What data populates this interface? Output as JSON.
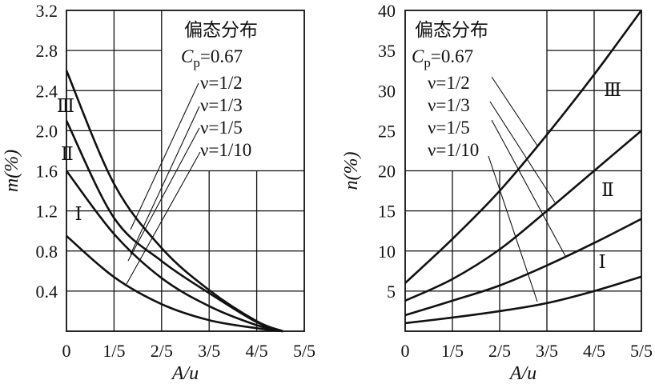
{
  "chart_data": [
    {
      "type": "line",
      "xlabel": "A/u",
      "ylabel": "m(%)",
      "ylim": [
        0,
        3.2
      ],
      "xlim": [
        0,
        1
      ],
      "x_tick_labels": [
        "0",
        "1/5",
        "2/5",
        "3/5",
        "4/5",
        "5/5"
      ],
      "y_ticks": [
        0.4,
        0.8,
        1.2,
        1.6,
        2.0,
        2.4,
        2.8,
        3.2
      ],
      "y_tick_labels": [
        "0.4",
        "0.8",
        "1.2",
        "1.6",
        "2.0",
        "2.4",
        "2.8",
        "3.2"
      ],
      "grid": true,
      "legend_title": "偏态分布",
      "legend_cp": "C",
      "legend_cp_sub": "p",
      "legend_cp_value": "=0.67",
      "legend_placement": "top-right",
      "curve_labels": [
        "Ⅲ",
        "Ⅱ",
        "Ⅰ"
      ],
      "x": [
        0,
        0.2,
        0.4,
        0.6,
        0.8,
        0.91
      ],
      "series": [
        {
          "name": "ν=1/2",
          "values": [
            2.6,
            1.47,
            0.83,
            0.41,
            0.1,
            0
          ]
        },
        {
          "name": "ν=1/3",
          "values": [
            2.1,
            1.13,
            0.7,
            0.38,
            0.09,
            0
          ]
        },
        {
          "name": "ν=1/5",
          "values": [
            1.6,
            0.97,
            0.53,
            0.25,
            0.06,
            0
          ]
        },
        {
          "name": "ν=1/10",
          "values": [
            0.95,
            0.54,
            0.27,
            0.11,
            0.03,
            0
          ]
        }
      ]
    },
    {
      "type": "line",
      "xlabel": "A/u",
      "ylabel": "n(%)",
      "ylim": [
        0,
        40
      ],
      "xlim": [
        0,
        1
      ],
      "x_tick_labels": [
        "0",
        "1/5",
        "2/5",
        "3/5",
        "4/5",
        "5/5"
      ],
      "y_ticks": [
        5,
        10,
        15,
        20,
        25,
        30,
        35,
        40
      ],
      "y_tick_labels": [
        "5",
        "10",
        "15",
        "20",
        "25",
        "30",
        "35",
        "40"
      ],
      "grid": true,
      "legend_title": "偏态分布",
      "legend_cp": "C",
      "legend_cp_sub": "p",
      "legend_cp_value": "=0.67",
      "legend_placement": "top-left",
      "curve_labels": [
        "Ⅲ",
        "Ⅱ",
        "Ⅰ"
      ],
      "x": [
        0,
        0.2,
        0.4,
        0.6,
        0.8,
        1.0
      ],
      "series": [
        {
          "name": "ν=1/2",
          "values": [
            6,
            11.5,
            17.5,
            24.5,
            32,
            40
          ]
        },
        {
          "name": "ν=1/3",
          "values": [
            3.8,
            6.5,
            10.2,
            15,
            20,
            25
          ]
        },
        {
          "name": "ν=1/5",
          "values": [
            2,
            3.8,
            5.7,
            8.2,
            11,
            14
          ]
        },
        {
          "name": "ν=1/10",
          "values": [
            1,
            1.7,
            2.5,
            3.5,
            5,
            6.8
          ]
        }
      ]
    }
  ]
}
